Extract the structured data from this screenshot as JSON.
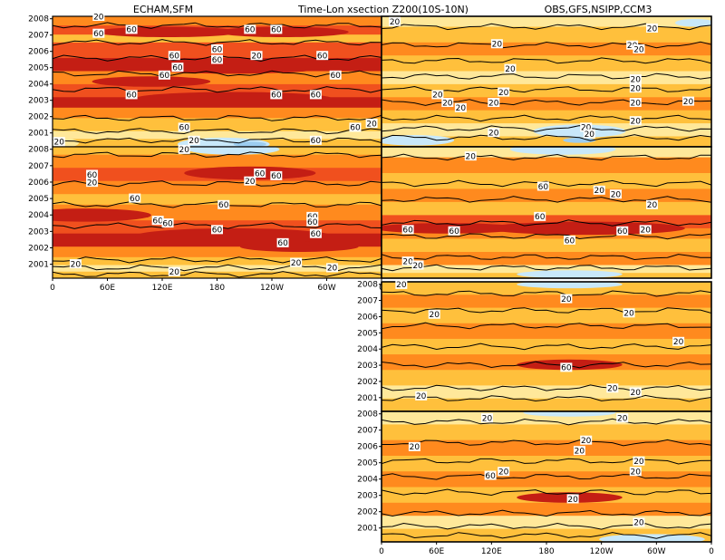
{
  "figure": {
    "title_left": "ECHAM,SFM",
    "title_center": "Time-Lon xsection Z200(10S-10N)",
    "title_right": "OBS,GFS,NSIPP,CCM3"
  },
  "colors": {
    "pale_yellow": "#ffe89a",
    "light_orange": "#ffc03c",
    "orange": "#ff8a1e",
    "red_orange": "#f0501e",
    "dark_red": "#c41e14",
    "light_blue": "#c8e8fa",
    "mid_blue": "#9ccdf0",
    "contour": "#000000"
  },
  "chart_data": [
    {
      "type": "heatmap",
      "panel": "top-left",
      "title": "ECHAM",
      "x_ticks": [],
      "y_ticks": [
        "2008",
        "2007",
        "2006",
        "2005",
        "2004",
        "2003",
        "2002",
        "2001"
      ],
      "contour_labels": [
        "20",
        "60",
        "60",
        "60",
        "60",
        "60",
        "60",
        "60",
        "60",
        "20",
        "60",
        "60",
        "60",
        "60",
        "60",
        "60",
        "60",
        "60",
        "60",
        "20",
        "20",
        "20"
      ]
    },
    {
      "type": "heatmap",
      "panel": "middle-left",
      "title": "SFM",
      "x_ticks": [
        "0",
        "60E",
        "120E",
        "180",
        "120W",
        "60W",
        "0"
      ],
      "y_ticks": [
        "2008",
        "2007",
        "2006",
        "2005",
        "2004",
        "2003",
        "2002",
        "2001"
      ],
      "contour_labels": [
        "20",
        "60",
        "20",
        "60",
        "60",
        "20",
        "60",
        "60",
        "60",
        "60",
        "60",
        "60",
        "60",
        "60",
        "60",
        "20",
        "20",
        "20",
        "20"
      ]
    },
    {
      "type": "heatmap",
      "panel": "top-right",
      "title": "OBS",
      "x_ticks": [],
      "y_ticks": [],
      "contour_labels": [
        "20",
        "20",
        "20",
        "20",
        "20",
        "20",
        "20",
        "20",
        "20",
        "20",
        "20",
        "20",
        "20",
        "20",
        "20",
        "20",
        "20",
        "20",
        "20"
      ]
    },
    {
      "type": "heatmap",
      "panel": "upper-mid-right",
      "title": "GFS",
      "x_ticks": [],
      "y_ticks": [],
      "contour_labels": [
        "20",
        "20",
        "20",
        "20",
        "60",
        "60",
        "60",
        "60",
        "60",
        "60",
        "20",
        "20",
        "20"
      ]
    },
    {
      "type": "heatmap",
      "panel": "lower-mid-right",
      "title": "NSIPP",
      "x_ticks": [],
      "y_ticks": [
        "2008",
        "2007",
        "2006",
        "2005",
        "2004",
        "2003",
        "2002",
        "2001"
      ],
      "contour_labels": [
        "20",
        "20",
        "20",
        "20",
        "20",
        "60",
        "20",
        "20",
        "20"
      ]
    },
    {
      "type": "heatmap",
      "panel": "bottom-right",
      "title": "CCM3",
      "x_ticks": [
        "0",
        "60E",
        "120E",
        "180",
        "120W",
        "60W",
        "0"
      ],
      "y_ticks": [
        "2008",
        "2007",
        "2006",
        "2005",
        "2004",
        "2003",
        "2002",
        "2001"
      ],
      "contour_labels": [
        "20",
        "20",
        "20",
        "20",
        "20",
        "20",
        "20",
        "60",
        "20",
        "20",
        "20"
      ]
    }
  ]
}
